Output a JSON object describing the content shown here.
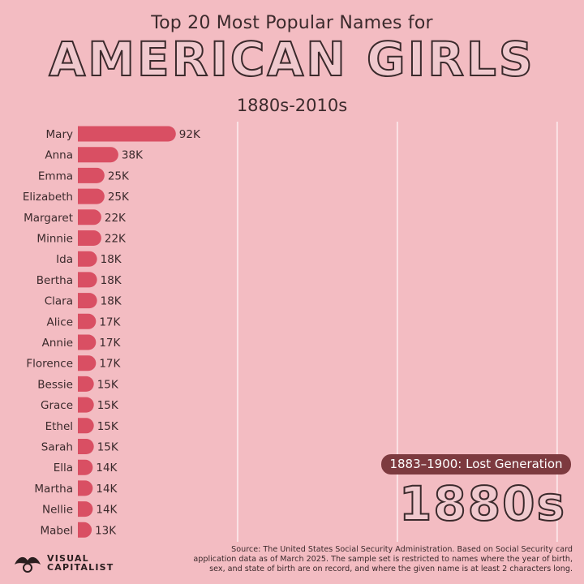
{
  "header": {
    "supertitle": "Top 20 Most Popular Names for",
    "title": "AMERICAN GIRLS",
    "subtitle": "1880s-2010s"
  },
  "chart_data": {
    "type": "bar",
    "orientation": "horizontal",
    "categories": [
      "Mary",
      "Anna",
      "Emma",
      "Elizabeth",
      "Margaret",
      "Minnie",
      "Ida",
      "Bertha",
      "Clara",
      "Alice",
      "Annie",
      "Florence",
      "Bessie",
      "Grace",
      "Ethel",
      "Sarah",
      "Ella",
      "Martha",
      "Nellie",
      "Mabel"
    ],
    "values": [
      92000,
      38000,
      25000,
      25000,
      22000,
      22000,
      18000,
      18000,
      18000,
      17000,
      17000,
      17000,
      15000,
      15000,
      15000,
      15000,
      14000,
      14000,
      14000,
      13000
    ],
    "value_labels": [
      "92K",
      "38K",
      "25K",
      "25K",
      "22K",
      "22K",
      "18K",
      "18K",
      "18K",
      "17K",
      "17K",
      "17K",
      "15K",
      "15K",
      "15K",
      "15K",
      "14K",
      "14K",
      "14K",
      "13K"
    ],
    "xlim": [
      0,
      460000
    ],
    "gridlines": [
      150000,
      300000,
      450000
    ],
    "colors": {
      "bar": "#d94f63",
      "grid": "#fbe2e5",
      "text": "#3b2a2c"
    }
  },
  "era_label": "1883–1900: Lost Generation",
  "decade_label": "1880s",
  "footer": {
    "logo_line1": "VISUAL",
    "logo_line2": "CAPITALIST",
    "source_lines": [
      "Source: The United States Social Security Administration. Based on Social Security card",
      "application data as of March 2025. The sample set is restricted to names where the year of birth,",
      "sex, and state of birth are on record, and where the given name is at least 2 characters long."
    ]
  }
}
